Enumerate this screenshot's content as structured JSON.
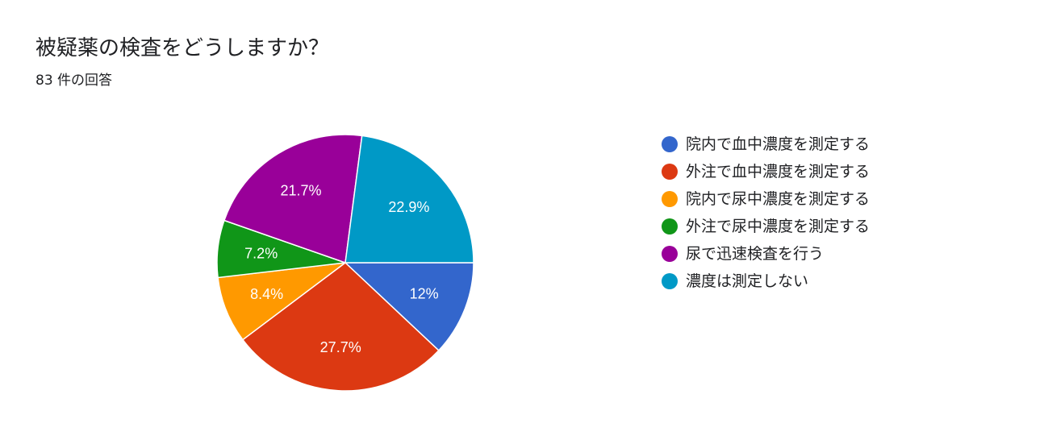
{
  "header": {
    "title": "被疑薬の検査をどうしますか？",
    "subtitle": "83 件の回答"
  },
  "chart_data": {
    "type": "pie",
    "start_angle_deg": 90,
    "direction": "clockwise",
    "legend_position": "right",
    "slices": [
      {
        "label": "院内で血中濃度を測定する",
        "value": 12.0,
        "display": "12%",
        "color": "#3366cc",
        "label_color": "#ffffff"
      },
      {
        "label": "外注で血中濃度を測定する",
        "value": 27.7,
        "display": "27.7%",
        "color": "#dc3912",
        "label_color": "#ffffff"
      },
      {
        "label": "院内で尿中濃度を測定する",
        "value": 8.4,
        "display": "8.4%",
        "color": "#ff9900",
        "label_color": "#ffffff"
      },
      {
        "label": "外注で尿中濃度を測定する",
        "value": 7.2,
        "display": "7.2%",
        "color": "#109618",
        "label_color": "#ffffff"
      },
      {
        "label": "尿で迅速検査を行う",
        "value": 21.7,
        "display": "21.7%",
        "color": "#990099",
        "label_color": "#ffffff"
      },
      {
        "label": "濃度は測定しない",
        "value": 22.9,
        "display": "22.9%",
        "color": "#0099c6",
        "label_color": "#ffffff"
      }
    ]
  }
}
